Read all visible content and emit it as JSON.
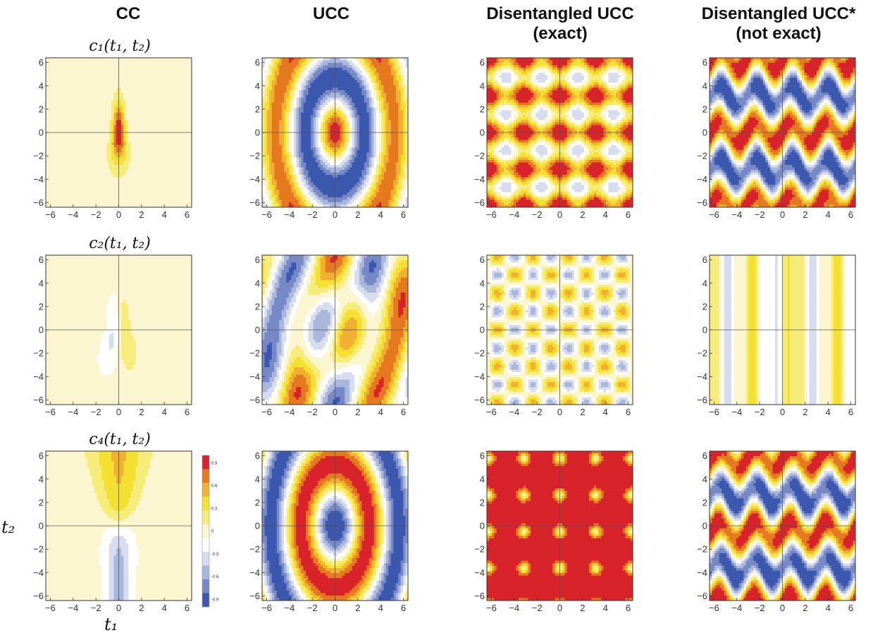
{
  "columns": [
    "CC",
    "UCC",
    "Disentangled UCC\n(exact)",
    "Disentangled UCC*\n(not exact)"
  ],
  "rows": [
    "c₁(t₁, t₂)",
    "c₂(t₁, t₂)",
    "c₄(t₁, t₂)"
  ],
  "axis_labels": {
    "x": "t₁",
    "y": "t₂"
  },
  "legend": {
    "ticks": [
      "0.9",
      "0.6",
      "0.3",
      "0",
      "-0.3",
      "-0.6",
      "-0.9"
    ],
    "colors": [
      "#d8232a",
      "#e5791f",
      "#f0b030",
      "#f3e030",
      "#f6ec7a",
      "#fbf6cf",
      "#ffffff",
      "#d7ddef",
      "#a9b7dc",
      "#7689c6",
      "#3c58ae"
    ]
  },
  "chart_data": {
    "type": "heatmap",
    "layout": "grid 3 rows x 4 columns of filled contour plots",
    "xlim": [
      -6.4,
      6.4
    ],
    "ylim": [
      -6.4,
      6.4
    ],
    "xticks": [
      -6,
      -4,
      -2,
      0,
      2,
      4,
      6
    ],
    "yticks": [
      -6,
      -4,
      -2,
      0,
      2,
      4,
      6
    ],
    "color_range": [
      -1,
      1
    ],
    "contour_levels": [
      -0.9,
      -0.6,
      -0.3,
      0,
      0.3,
      0.6,
      0.9
    ],
    "panels": [
      {
        "row": "c₁(t₁, t₂)",
        "column": "CC",
        "grid": true
      },
      {
        "row": "c₁(t₁, t₂)",
        "column": "UCC",
        "grid": true
      },
      {
        "row": "c₁(t₁, t₂)",
        "column": "Disentangled UCC (exact)",
        "grid": true
      },
      {
        "row": "c₁(t₁, t₂)",
        "column": "Disentangled UCC* (not exact)",
        "grid": true
      },
      {
        "row": "c₂(t₁, t₂)",
        "column": "CC",
        "grid": true
      },
      {
        "row": "c₂(t₁, t₂)",
        "column": "UCC",
        "grid": true
      },
      {
        "row": "c₂(t₁, t₂)",
        "column": "Disentangled UCC (exact)",
        "grid": true
      },
      {
        "row": "c₂(t₁, t₂)",
        "column": "Disentangled UCC* (not exact)",
        "grid": true
      },
      {
        "row": "c₄(t₁, t₂)",
        "column": "CC",
        "grid": true
      },
      {
        "row": "c₄(t₁, t₂)",
        "column": "UCC",
        "grid": true
      },
      {
        "row": "c₄(t₁, t₂)",
        "column": "Disentangled UCC (exact)",
        "grid": true
      },
      {
        "row": "c₄(t₁, t₂)",
        "column": "Disentangled UCC* (not exact)",
        "grid": true
      }
    ]
  }
}
